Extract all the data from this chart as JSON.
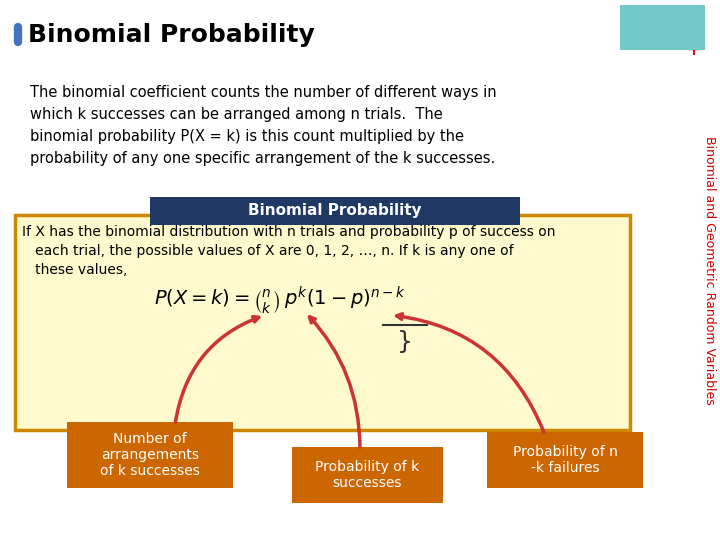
{
  "title": "Binomial Probability",
  "title_bullet_color": "#4472C4",
  "background_color": "#FFFFFF",
  "top_rect_color": "#70C8C8",
  "side_text": "Binomial and Geometric Random Variables",
  "side_text_color": "#CC0000",
  "side_plus_color": "#CC0000",
  "body_text": "The binomial coefficient counts the number of different ways in\nwhich k successes can be arranged among n trials.  The\nbinomial probability P(X = k) is this count multiplied by the\nprobability of any one specific arrangement of the k successes.",
  "box_header_text": "Binomial Probability",
  "box_header_bg": "#1F3864",
  "box_header_text_color": "#FFFFFF",
  "box_body_bg": "#FFFACD",
  "box_body_border": "#CC8800",
  "box_body_text": "If X has the binomial distribution with n trials and probability p of success on\n   each trial, the possible values of X are 0, 1, 2, …, n. If k is any one of\n   these values,",
  "label1_text": "Number of\narrangements\nof k successes",
  "label2_text": "Probability of k\nsuccesses",
  "label3_text": "Probability of n\n-k failures",
  "label_bg": "#CC6600",
  "label_text_color": "#FFFFFF"
}
